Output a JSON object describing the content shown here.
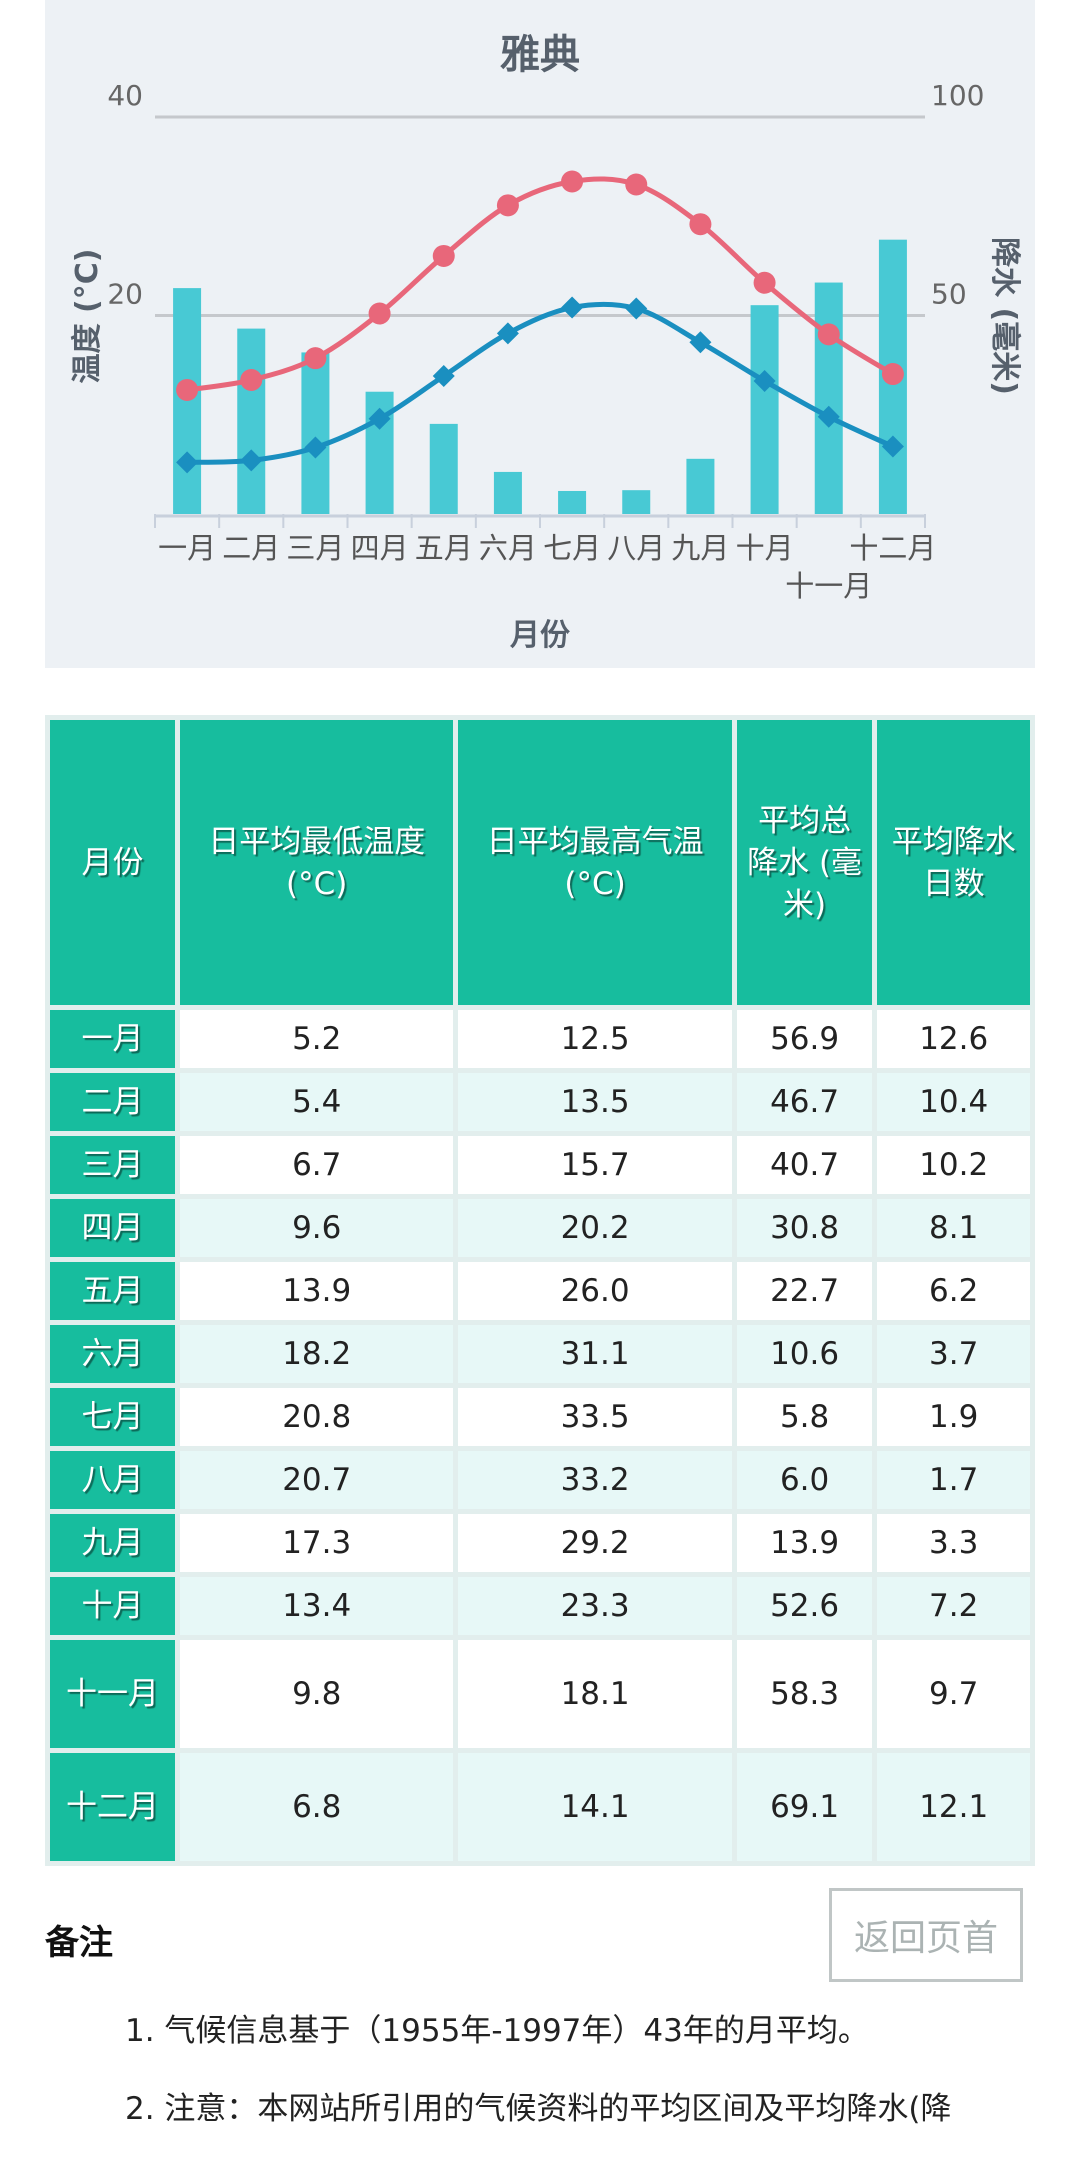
{
  "chart_data": {
    "type": "bar+line",
    "title": "雅典",
    "xlabel": "月份",
    "ylabel_left": "温度 (°C)",
    "ylabel_right": "降水 (毫米)",
    "categories": [
      "一月",
      "二月",
      "三月",
      "四月",
      "五月",
      "六月",
      "七月",
      "八月",
      "九月",
      "十月",
      "十一月",
      "十二月"
    ],
    "ylim_left": [
      0,
      40
    ],
    "ylim_right": [
      0,
      100
    ],
    "yticks_left": [
      "40",
      "20"
    ],
    "yticks_right": [
      "100",
      "50"
    ],
    "grid": true,
    "series": [
      {
        "type": "bar",
        "axis": "right",
        "color": "#48c9d4",
        "values": [
          56.9,
          46.7,
          40.7,
          30.8,
          22.7,
          10.6,
          5.8,
          6.0,
          13.9,
          52.6,
          58.3,
          69.1
        ]
      },
      {
        "type": "line",
        "axis": "left",
        "marker": "circle",
        "color": "#e8677a",
        "values": [
          12.5,
          13.5,
          15.7,
          20.2,
          26.0,
          31.1,
          33.5,
          33.2,
          29.2,
          23.3,
          18.1,
          14.1
        ]
      },
      {
        "type": "line",
        "axis": "left",
        "marker": "diamond",
        "color": "#1a8fc0",
        "values": [
          5.2,
          5.4,
          6.7,
          9.6,
          13.9,
          18.2,
          20.8,
          20.7,
          17.3,
          13.4,
          9.8,
          6.8
        ]
      }
    ]
  },
  "table": {
    "headers": [
      "月份",
      "日平均最低温度 (°C)",
      "日平均最高气温 (°C)",
      "平均总降水 (毫米)",
      "平均降水日数"
    ],
    "rows": [
      [
        "一月",
        "5.2",
        "12.5",
        "56.9",
        "12.6"
      ],
      [
        "二月",
        "5.4",
        "13.5",
        "46.7",
        "10.4"
      ],
      [
        "三月",
        "6.7",
        "15.7",
        "40.7",
        "10.2"
      ],
      [
        "四月",
        "9.6",
        "20.2",
        "30.8",
        "8.1"
      ],
      [
        "五月",
        "13.9",
        "26.0",
        "22.7",
        "6.2"
      ],
      [
        "六月",
        "18.2",
        "31.1",
        "10.6",
        "3.7"
      ],
      [
        "七月",
        "20.8",
        "33.5",
        "5.8",
        "1.9"
      ],
      [
        "八月",
        "20.7",
        "33.2",
        "6.0",
        "1.7"
      ],
      [
        "九月",
        "17.3",
        "29.2",
        "13.9",
        "3.3"
      ],
      [
        "十月",
        "13.4",
        "23.3",
        "52.6",
        "7.2"
      ],
      [
        "十一月",
        "9.8",
        "18.1",
        "58.3",
        "9.7"
      ],
      [
        "十二月",
        "6.8",
        "14.1",
        "69.1",
        "12.1"
      ]
    ]
  },
  "back_to_top": "返回页首",
  "notes": {
    "title": "备注",
    "items": [
      "1. 气候信息基于（1955年-1997年）43年的月平均。",
      "2. 注意：本网站所引用的气候资料的平均区间及平均降水(降"
    ]
  }
}
